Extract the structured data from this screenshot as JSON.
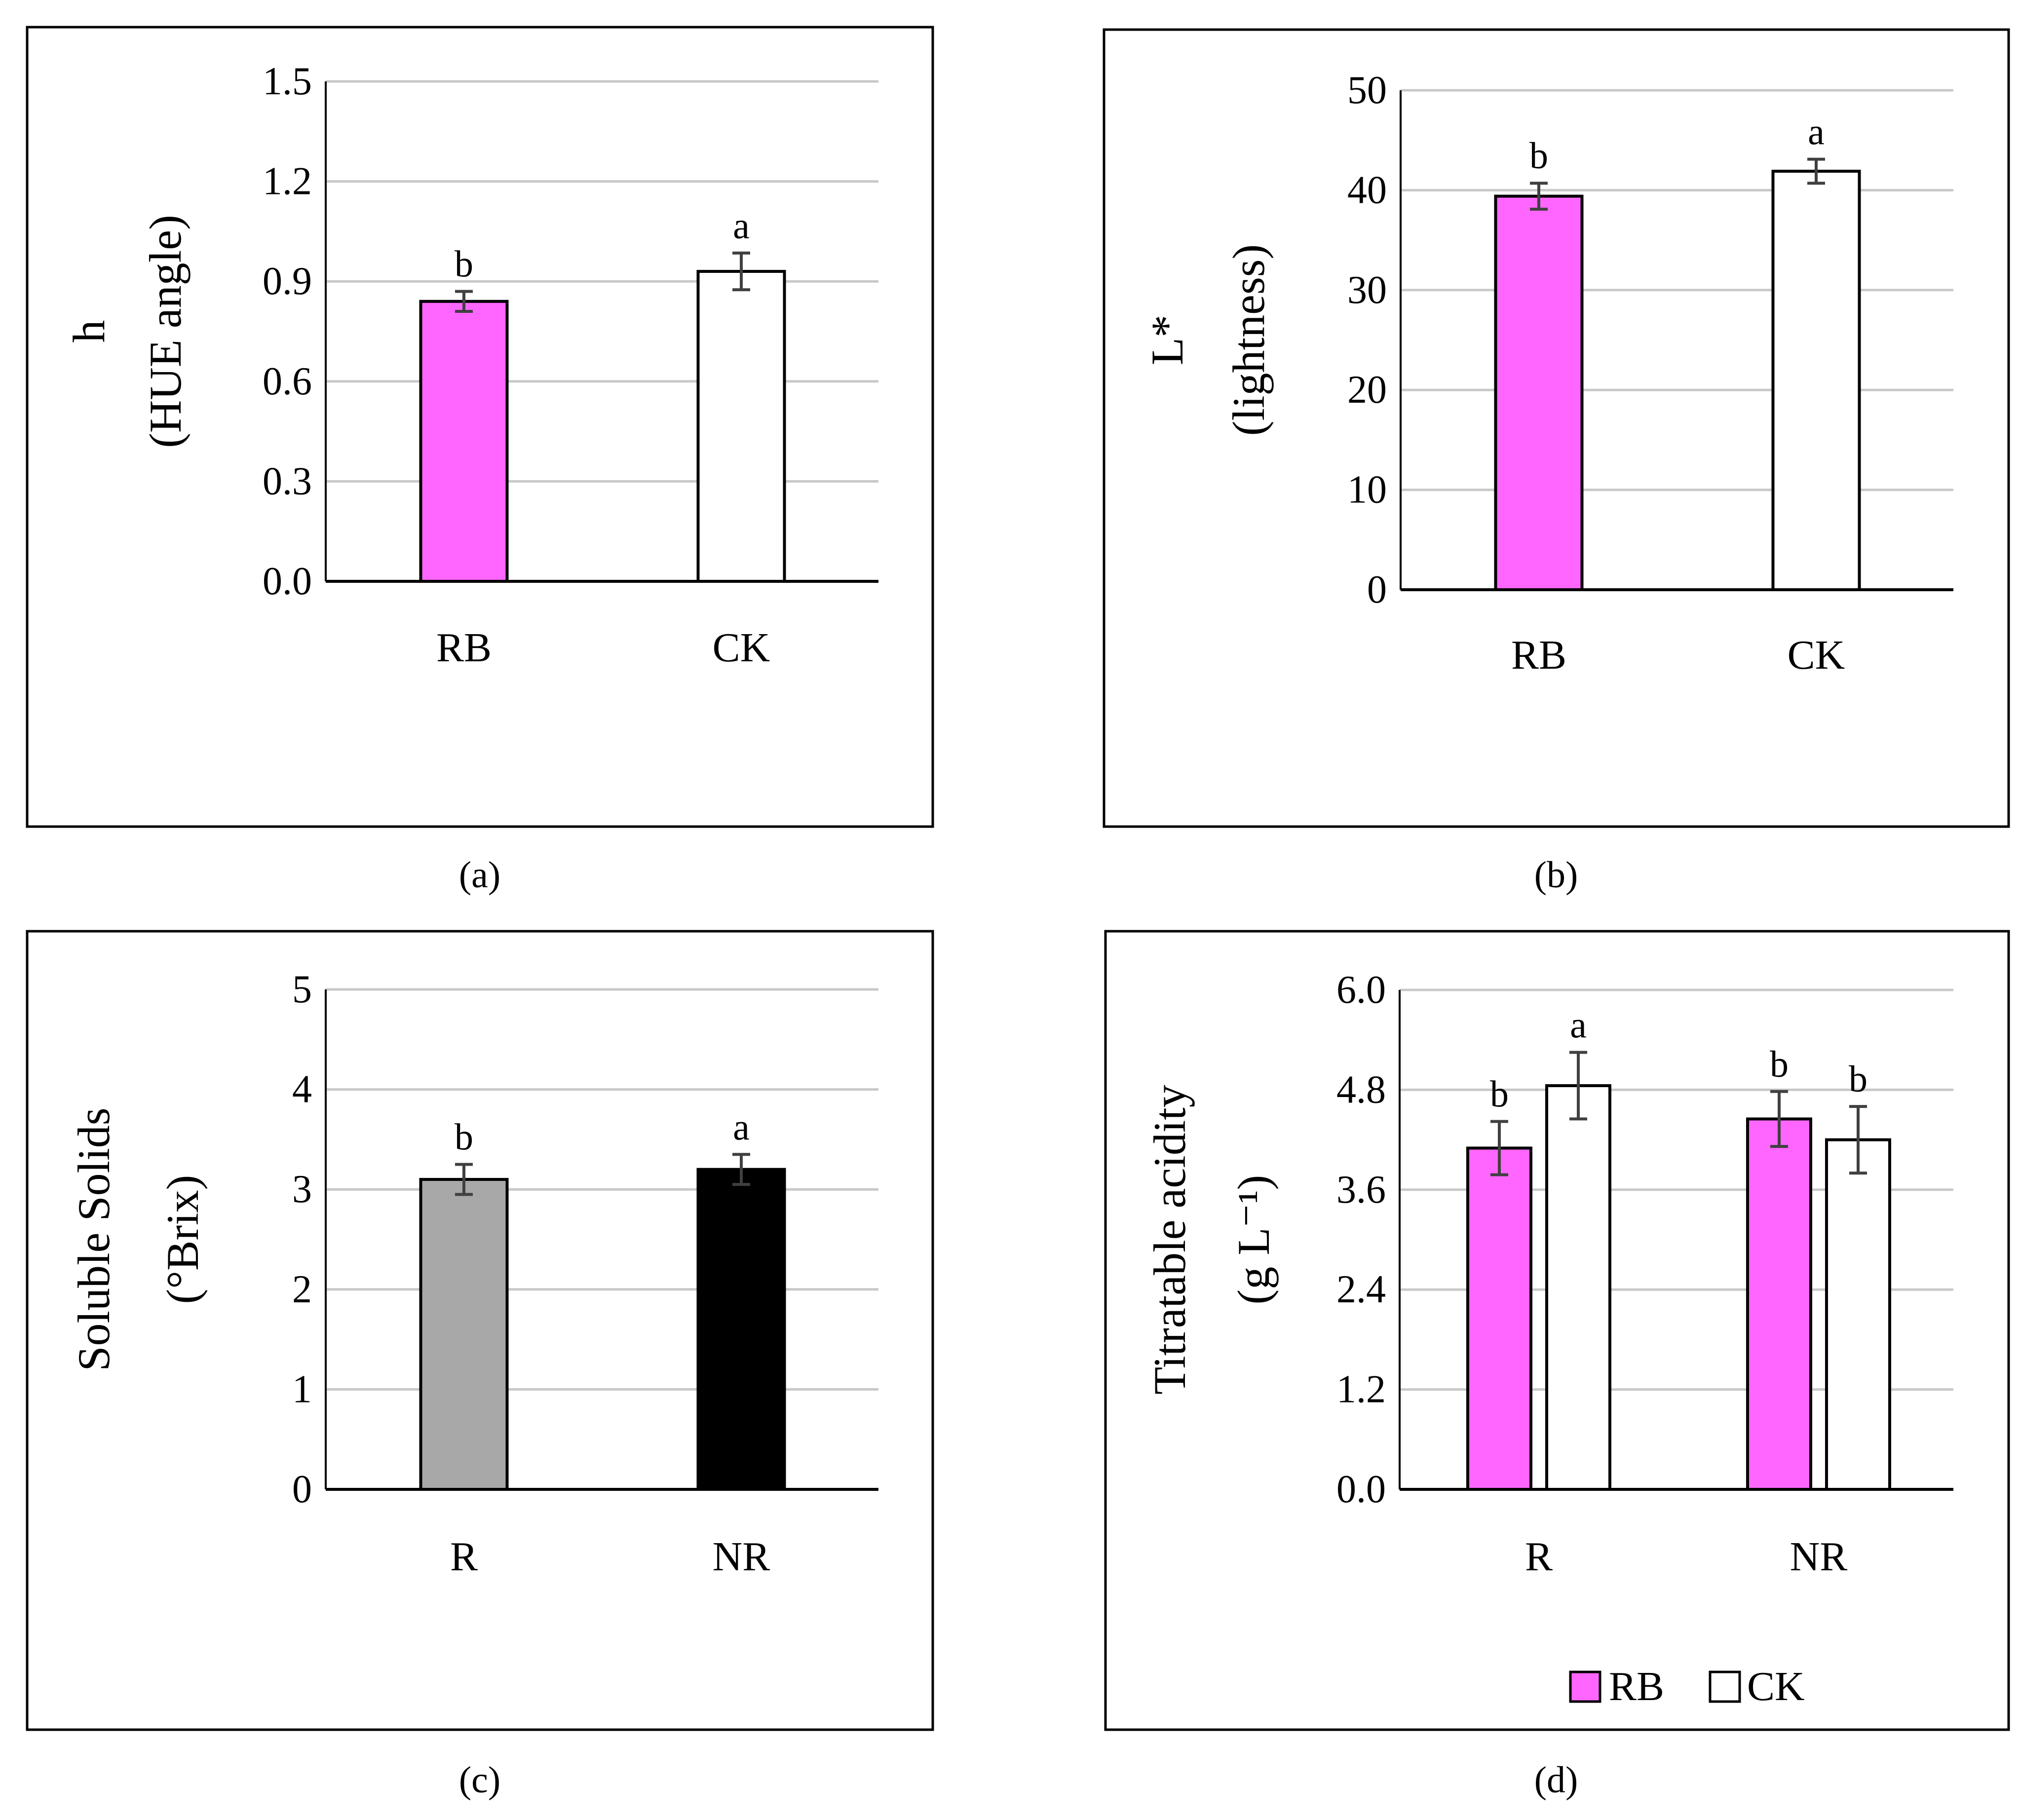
{
  "figure": {
    "captions": [
      "(a)",
      "(b)",
      "(c)",
      "(d)"
    ],
    "legend": [
      {
        "label": "RB",
        "color": "#FF66FF"
      },
      {
        "label": "CK",
        "color": "#FFFFFF"
      }
    ]
  },
  "chart_data": [
    {
      "id": "a",
      "type": "bar",
      "caption": "(a)",
      "ylabel_lines": [
        "h",
        "(HUE angle)"
      ],
      "ylim": [
        0,
        1.5
      ],
      "yticks": [
        "0.0",
        "0.3",
        "0.6",
        "0.9",
        "1.2",
        "1.5"
      ],
      "categories": [
        "RB",
        "CK"
      ],
      "series": [
        {
          "name": "h",
          "values": [
            0.84,
            0.93
          ],
          "errors": [
            0.03,
            0.055
          ],
          "letters": [
            "b",
            "a"
          ],
          "colors": [
            "#FF66FF",
            "#FFFFFF"
          ]
        }
      ],
      "grid": true
    },
    {
      "id": "b",
      "type": "bar",
      "caption": "(b)",
      "ylabel_lines": [
        "L*",
        "(lightness)"
      ],
      "ylim": [
        0,
        50
      ],
      "yticks": [
        "0",
        "10",
        "20",
        "30",
        "40",
        "50"
      ],
      "categories": [
        "RB",
        "CK"
      ],
      "series": [
        {
          "name": "L*",
          "values": [
            39.4,
            41.9
          ],
          "errors": [
            1.3,
            1.2
          ],
          "letters": [
            "b",
            "a"
          ],
          "colors": [
            "#FF66FF",
            "#FFFFFF"
          ]
        }
      ],
      "grid": true
    },
    {
      "id": "c",
      "type": "bar",
      "caption": "(c)",
      "ylabel_lines": [
        "Soluble Solids",
        "(°Brix)"
      ],
      "ylim": [
        0,
        5
      ],
      "yticks": [
        "0",
        "1",
        "2",
        "3",
        "4",
        "5"
      ],
      "categories": [
        "R",
        "NR"
      ],
      "series": [
        {
          "name": "Soluble Solids",
          "values": [
            3.1,
            3.2
          ],
          "errors": [
            0.15,
            0.15
          ],
          "letters": [
            "b",
            "a"
          ],
          "colors": [
            "#A8A8A8",
            "#000000"
          ]
        }
      ],
      "grid": true
    },
    {
      "id": "d",
      "type": "bar",
      "caption": "(d)",
      "ylabel_lines": [
        "Titratable acidity",
        "(g L⁻¹)"
      ],
      "ylim": [
        0,
        6.0
      ],
      "yticks": [
        "0.0",
        "1.2",
        "2.4",
        "3.6",
        "4.8",
        "6.0"
      ],
      "categories": [
        "R",
        "NR"
      ],
      "series": [
        {
          "name": "RB",
          "values": [
            4.1,
            4.45
          ],
          "errors": [
            0.32,
            0.33
          ],
          "letters": [
            "b",
            "b"
          ],
          "color": "#FF66FF"
        },
        {
          "name": "CK",
          "values": [
            4.85,
            4.2
          ],
          "errors": [
            0.4,
            0.4
          ],
          "letters": [
            "a",
            "b"
          ],
          "color": "#FFFFFF"
        }
      ],
      "legend": [
        "RB",
        "CK"
      ],
      "grid": true
    }
  ]
}
